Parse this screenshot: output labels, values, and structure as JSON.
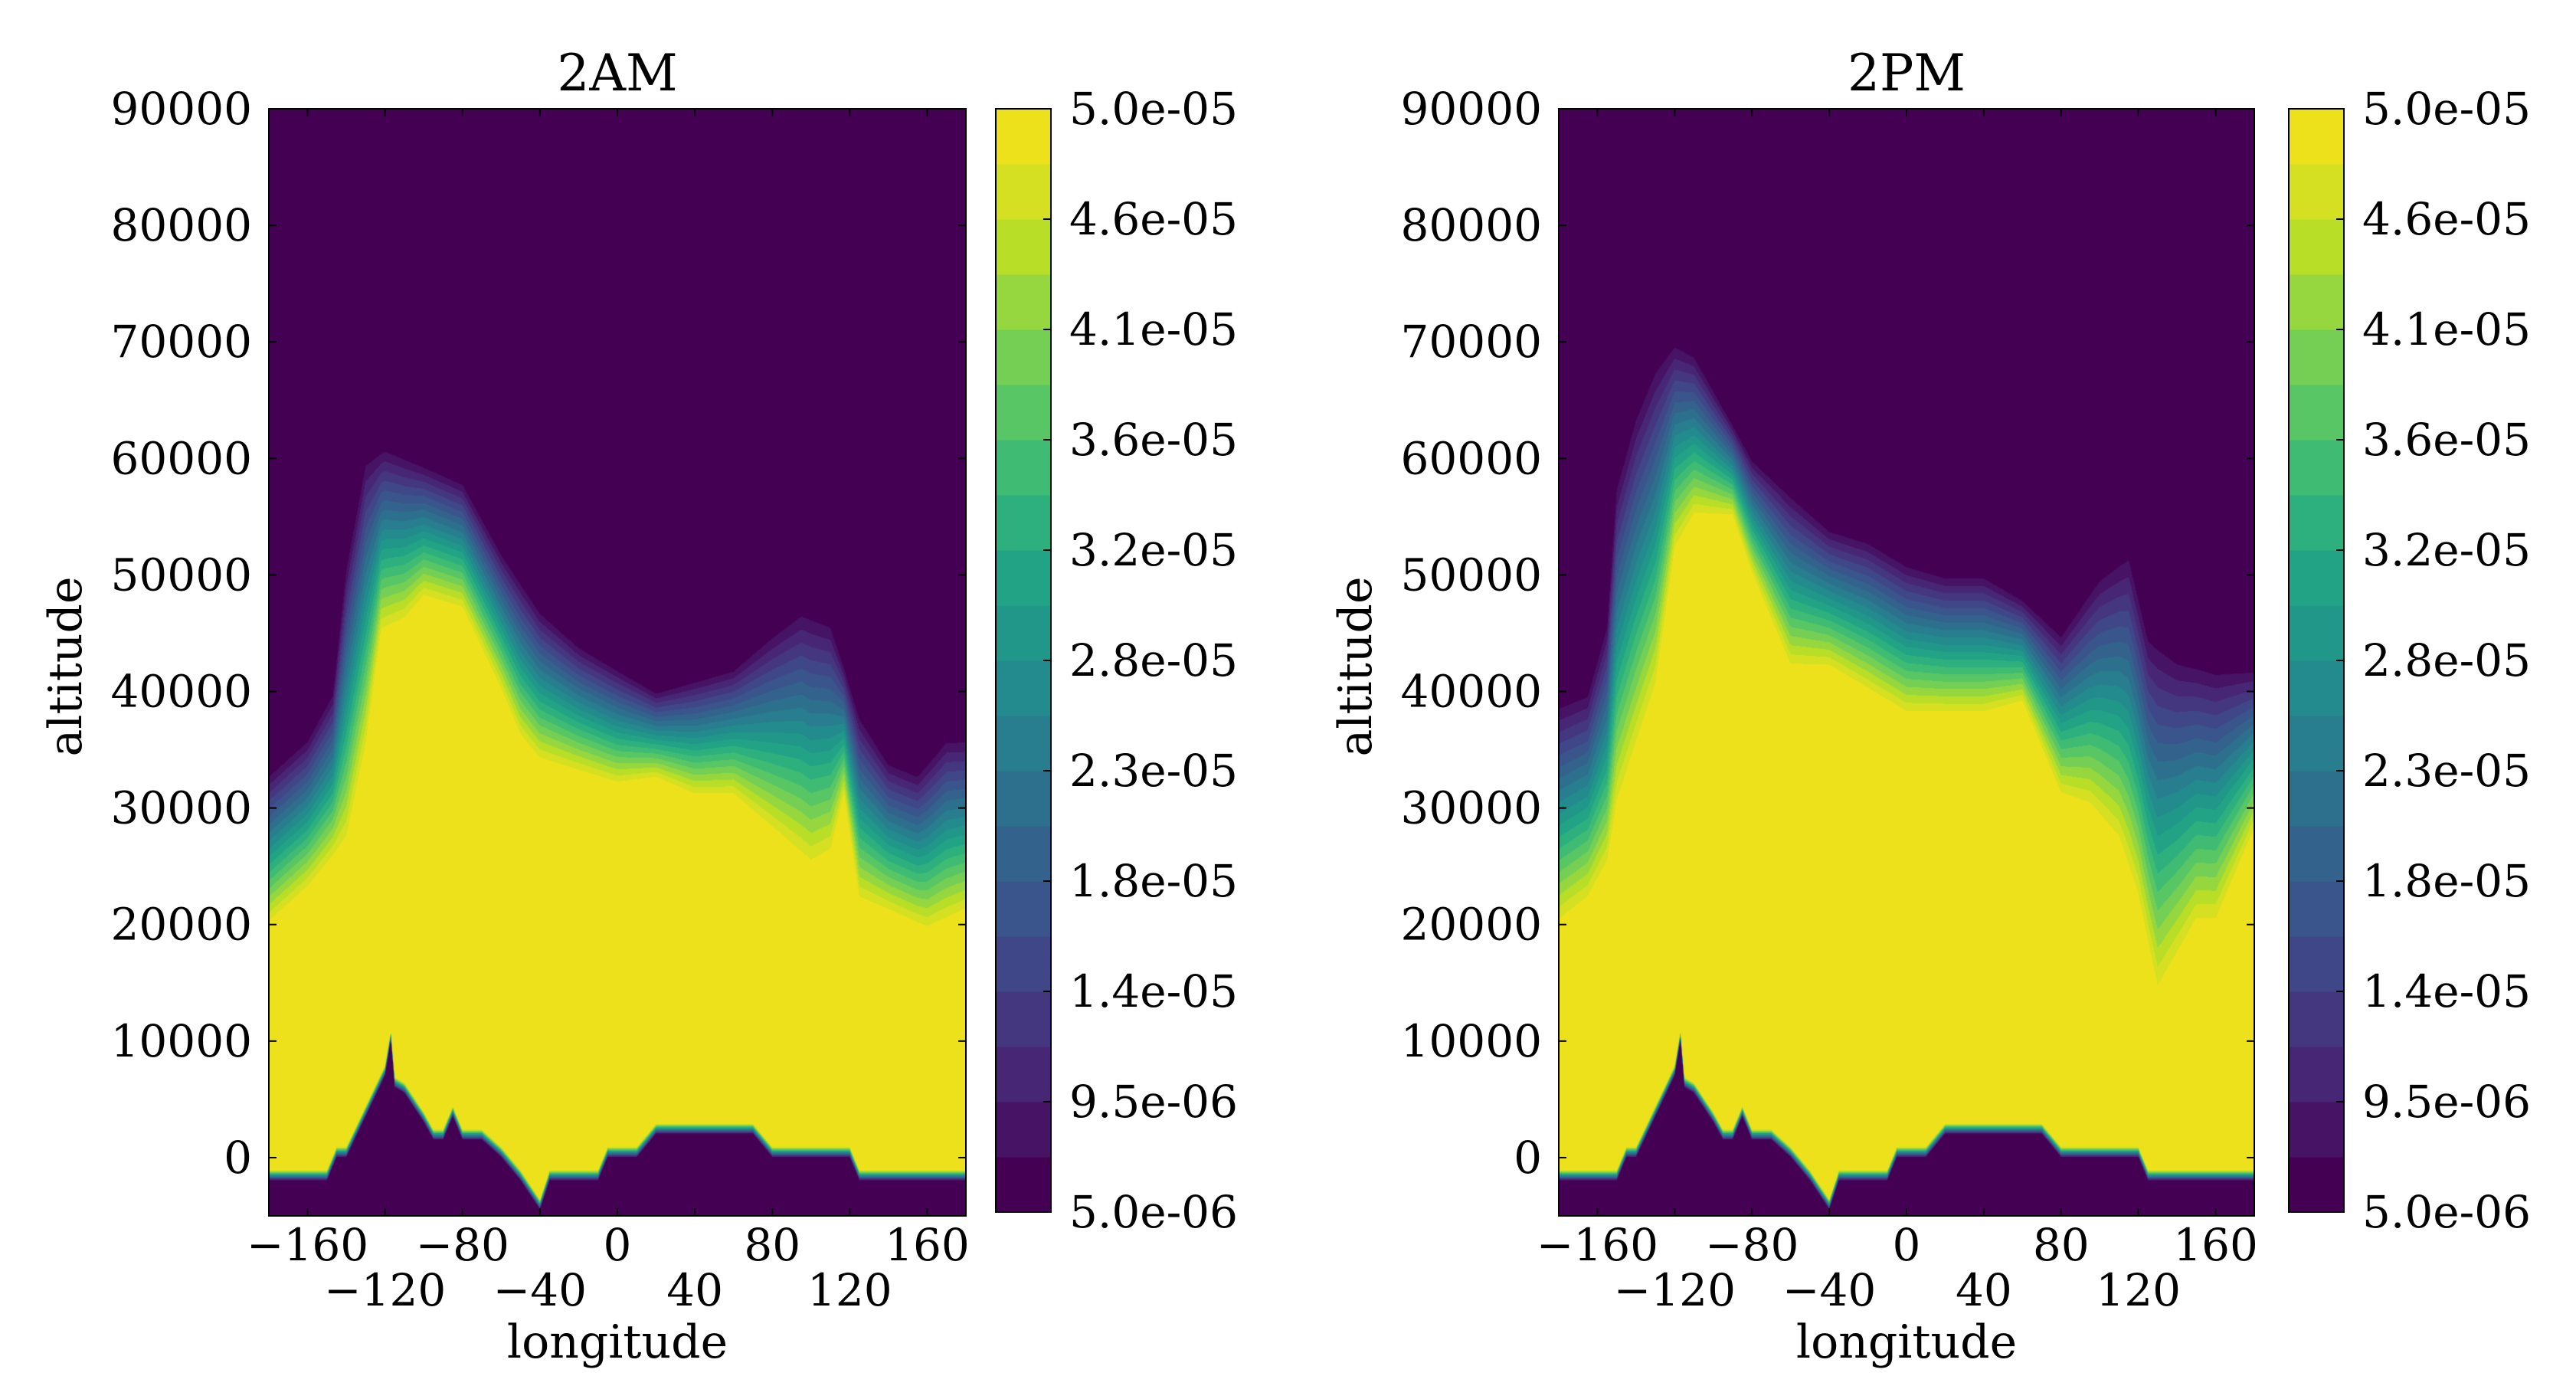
{
  "chart_data": [
    {
      "type": "heatmap",
      "subtype": "filled-contour",
      "title": "2AM",
      "xlabel": "longitude",
      "ylabel": "altitude",
      "xlim": [
        -180,
        180
      ],
      "ylim": [
        -5000,
        90000
      ],
      "xticks": [
        -160,
        -120,
        -80,
        -40,
        0,
        40,
        80,
        120,
        160
      ],
      "xtick_labels": [
        "−160",
        "−120",
        "−80",
        "−40",
        "0",
        "40",
        "80",
        "120",
        "160"
      ],
      "yticks": [
        0,
        10000,
        20000,
        30000,
        40000,
        50000,
        60000,
        70000,
        80000,
        90000
      ],
      "ytick_labels": [
        "0",
        "10000",
        "20000",
        "30000",
        "40000",
        "50000",
        "60000",
        "70000",
        "80000",
        "90000"
      ],
      "colorbar": {
        "colormap": "viridis",
        "range": [
          5e-06,
          5e-05
        ],
        "levels": 20,
        "tick_labels": [
          "5.0e-06",
          "9.5e-06",
          "1.4e-05",
          "1.8e-05",
          "2.3e-05",
          "2.8e-05",
          "3.2e-05",
          "3.6e-05",
          "4.1e-05",
          "4.6e-05",
          "5.0e-05"
        ]
      },
      "profiles": {
        "max_value_top": [
          [
            -180,
            20000
          ],
          [
            -160,
            23000
          ],
          [
            -140,
            27000
          ],
          [
            -130,
            35000
          ],
          [
            -122,
            45000
          ],
          [
            -110,
            46000
          ],
          [
            -100,
            48000
          ],
          [
            -80,
            47000
          ],
          [
            -60,
            40000
          ],
          [
            -50,
            36000
          ],
          [
            -40,
            34000
          ],
          [
            -20,
            33000
          ],
          [
            0,
            32000
          ],
          [
            20,
            32500
          ],
          [
            40,
            31000
          ],
          [
            60,
            31000
          ],
          [
            80,
            28000
          ],
          [
            100,
            25000
          ],
          [
            110,
            26000
          ],
          [
            117,
            31000
          ],
          [
            125,
            22000
          ],
          [
            140,
            21000
          ],
          [
            160,
            19500
          ],
          [
            180,
            21000
          ]
        ],
        "min_value_bottom": [
          [
            -180,
            33000
          ],
          [
            -160,
            36000
          ],
          [
            -147,
            40000
          ],
          [
            -140,
            51000
          ],
          [
            -130,
            60000
          ],
          [
            -120,
            61000
          ],
          [
            -100,
            59500
          ],
          [
            -80,
            58000
          ],
          [
            -60,
            52000
          ],
          [
            -40,
            47000
          ],
          [
            -20,
            44000
          ],
          [
            0,
            42000
          ],
          [
            20,
            40000
          ],
          [
            40,
            41000
          ],
          [
            60,
            42000
          ],
          [
            80,
            45000
          ],
          [
            95,
            47000
          ],
          [
            110,
            46000
          ],
          [
            125,
            38000
          ],
          [
            140,
            34000
          ],
          [
            155,
            33000
          ],
          [
            170,
            36000
          ],
          [
            180,
            36000
          ]
        ],
        "terrain": [
          [
            -180,
            -2000
          ],
          [
            -150,
            -2000
          ],
          [
            -145,
            0
          ],
          [
            -140,
            0
          ],
          [
            -120,
            7000
          ],
          [
            -117,
            10000
          ],
          [
            -115,
            6000
          ],
          [
            -110,
            5500
          ],
          [
            -100,
            3000
          ],
          [
            -95,
            1500
          ],
          [
            -90,
            1500
          ],
          [
            -85,
            3500
          ],
          [
            -80,
            1500
          ],
          [
            -70,
            1500
          ],
          [
            -60,
            0
          ],
          [
            -50,
            -2000
          ],
          [
            -40,
            -4500
          ],
          [
            -35,
            -2000
          ],
          [
            -10,
            -2000
          ],
          [
            -5,
            0
          ],
          [
            10,
            0
          ],
          [
            20,
            2000
          ],
          [
            70,
            2000
          ],
          [
            80,
            0
          ],
          [
            120,
            0
          ],
          [
            125,
            -2000
          ],
          [
            180,
            -2000
          ]
        ]
      }
    },
    {
      "type": "heatmap",
      "subtype": "filled-contour",
      "title": "2PM",
      "xlabel": "longitude",
      "ylabel": "altitude",
      "xlim": [
        -180,
        180
      ],
      "ylim": [
        -5000,
        90000
      ],
      "xticks": [
        -160,
        -120,
        -80,
        -40,
        0,
        40,
        80,
        120,
        160
      ],
      "xtick_labels": [
        "−160",
        "−120",
        "−80",
        "−40",
        "0",
        "40",
        "80",
        "120",
        "160"
      ],
      "yticks": [
        0,
        10000,
        20000,
        30000,
        40000,
        50000,
        60000,
        70000,
        80000,
        90000
      ],
      "ytick_labels": [
        "0",
        "10000",
        "20000",
        "30000",
        "40000",
        "50000",
        "60000",
        "70000",
        "80000",
        "90000"
      ],
      "colorbar": {
        "colormap": "viridis",
        "range": [
          5e-06,
          5e-05
        ],
        "levels": 20,
        "tick_labels": [
          "5.0e-06",
          "9.5e-06",
          "1.4e-05",
          "1.8e-05",
          "2.3e-05",
          "2.8e-05",
          "3.2e-05",
          "3.6e-05",
          "4.1e-05",
          "4.6e-05",
          "5.0e-05"
        ]
      },
      "profiles": {
        "max_value_top": [
          [
            -180,
            20000
          ],
          [
            -165,
            22000
          ],
          [
            -155,
            25000
          ],
          [
            -150,
            30000
          ],
          [
            -140,
            35000
          ],
          [
            -130,
            40000
          ],
          [
            -120,
            52000
          ],
          [
            -110,
            55000
          ],
          [
            -90,
            55000
          ],
          [
            -80,
            50000
          ],
          [
            -60,
            42000
          ],
          [
            -40,
            42000
          ],
          [
            -20,
            40000
          ],
          [
            0,
            38000
          ],
          [
            20,
            38000
          ],
          [
            40,
            38000
          ],
          [
            60,
            39000
          ],
          [
            70,
            35000
          ],
          [
            80,
            31000
          ],
          [
            95,
            30000
          ],
          [
            110,
            27000
          ],
          [
            120,
            22000
          ],
          [
            130,
            14000
          ],
          [
            140,
            17000
          ],
          [
            150,
            20000
          ],
          [
            160,
            20000
          ],
          [
            170,
            24000
          ],
          [
            180,
            28000
          ]
        ],
        "min_value_bottom": [
          [
            -180,
            39000
          ],
          [
            -165,
            40000
          ],
          [
            -155,
            46000
          ],
          [
            -150,
            58000
          ],
          [
            -140,
            64000
          ],
          [
            -130,
            68000
          ],
          [
            -120,
            70000
          ],
          [
            -110,
            69000
          ],
          [
            -100,
            66000
          ],
          [
            -80,
            60000
          ],
          [
            -60,
            57000
          ],
          [
            -40,
            54000
          ],
          [
            -20,
            53000
          ],
          [
            0,
            51000
          ],
          [
            20,
            50000
          ],
          [
            40,
            50000
          ],
          [
            60,
            48000
          ],
          [
            80,
            45000
          ],
          [
            100,
            50000
          ],
          [
            115,
            52000
          ],
          [
            125,
            45000
          ],
          [
            140,
            43000
          ],
          [
            160,
            42000
          ],
          [
            180,
            42000
          ]
        ],
        "terrain": [
          [
            -180,
            -2000
          ],
          [
            -150,
            -2000
          ],
          [
            -145,
            0
          ],
          [
            -140,
            0
          ],
          [
            -120,
            7000
          ],
          [
            -117,
            10000
          ],
          [
            -115,
            6000
          ],
          [
            -110,
            5500
          ],
          [
            -100,
            3000
          ],
          [
            -95,
            1500
          ],
          [
            -90,
            1500
          ],
          [
            -85,
            3500
          ],
          [
            -80,
            1500
          ],
          [
            -70,
            1500
          ],
          [
            -60,
            0
          ],
          [
            -50,
            -2000
          ],
          [
            -40,
            -4500
          ],
          [
            -35,
            -2000
          ],
          [
            -10,
            -2000
          ],
          [
            -5,
            0
          ],
          [
            10,
            0
          ],
          [
            20,
            2000
          ],
          [
            70,
            2000
          ],
          [
            80,
            0
          ],
          [
            120,
            0
          ],
          [
            125,
            -2000
          ],
          [
            180,
            -2000
          ]
        ]
      }
    }
  ]
}
